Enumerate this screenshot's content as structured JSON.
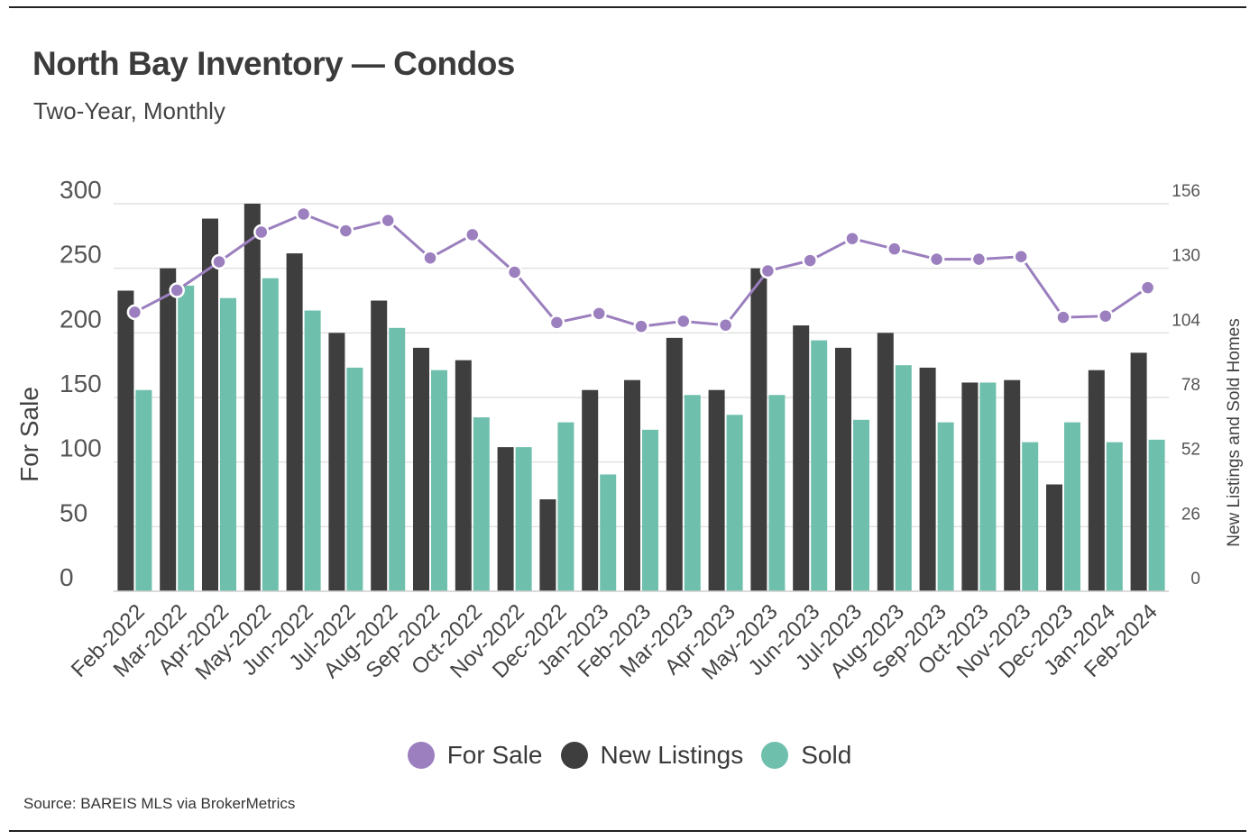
{
  "title": "North Bay Inventory — Condos",
  "subtitle": "Two-Year, Monthly",
  "source": "Source:  BAREIS MLS via BrokerMetrics",
  "colors": {
    "for_sale": "#9b7fbe",
    "new_listings": "#3e3e3e",
    "sold": "#6fbfad",
    "grid": "#d9d9d9",
    "text": "#3a3a3a"
  },
  "legend": [
    {
      "label": "For Sale",
      "color": "#9b7fbe"
    },
    {
      "label": "New Listings",
      "color": "#3e3e3e"
    },
    {
      "label": "Sold",
      "color": "#6fbfad"
    }
  ],
  "chart_data": {
    "type": "bar",
    "title": "North Bay Inventory — Condos",
    "subtitle": "Two-Year, Monthly",
    "ylabel": "For Sale",
    "y2label": "New Listings and Sold Homes",
    "ylim": [
      0,
      300
    ],
    "y2lim": [
      0,
      156
    ],
    "yticks": [
      0,
      50,
      100,
      150,
      200,
      250,
      300
    ],
    "y2ticks": [
      0,
      26,
      52,
      78,
      104,
      130,
      156
    ],
    "grid": true,
    "legend_position": "bottom",
    "categories": [
      "Feb-2022",
      "Mar-2022",
      "Apr-2022",
      "May-2022",
      "Jun-2022",
      "Jul-2022",
      "Aug-2022",
      "Sep-2022",
      "Oct-2022",
      "Nov-2022",
      "Dec-2022",
      "Jan-2023",
      "Feb-2023",
      "Mar-2023",
      "Apr-2023",
      "May-2023",
      "Jun-2023",
      "Jul-2023",
      "Aug-2023",
      "Sep-2023",
      "Oct-2023",
      "Nov-2023",
      "Dec-2023",
      "Jan-2024",
      "Feb-2024"
    ],
    "series": [
      {
        "name": "New Listings",
        "type": "bar",
        "axis": "right",
        "values": [
          121,
          130,
          150,
          156,
          136,
          104,
          117,
          98,
          93,
          58,
          37,
          81,
          85,
          102,
          81,
          130,
          107,
          98,
          104,
          90,
          84,
          85,
          43,
          89,
          96
        ]
      },
      {
        "name": "Sold",
        "type": "bar",
        "axis": "right",
        "values": [
          81,
          123,
          118,
          126,
          113,
          90,
          106,
          89,
          70,
          58,
          68,
          47,
          65,
          79,
          71,
          79,
          101,
          69,
          91,
          68,
          84,
          60,
          68,
          60,
          61
        ]
      },
      {
        "name": "For Sale",
        "type": "line",
        "axis": "left",
        "values": [
          216,
          233,
          255,
          278,
          292,
          279,
          287,
          258,
          276,
          247,
          208,
          215,
          205,
          209,
          206,
          248,
          256,
          273,
          265,
          257,
          257,
          259,
          212,
          213,
          235
        ]
      }
    ]
  }
}
